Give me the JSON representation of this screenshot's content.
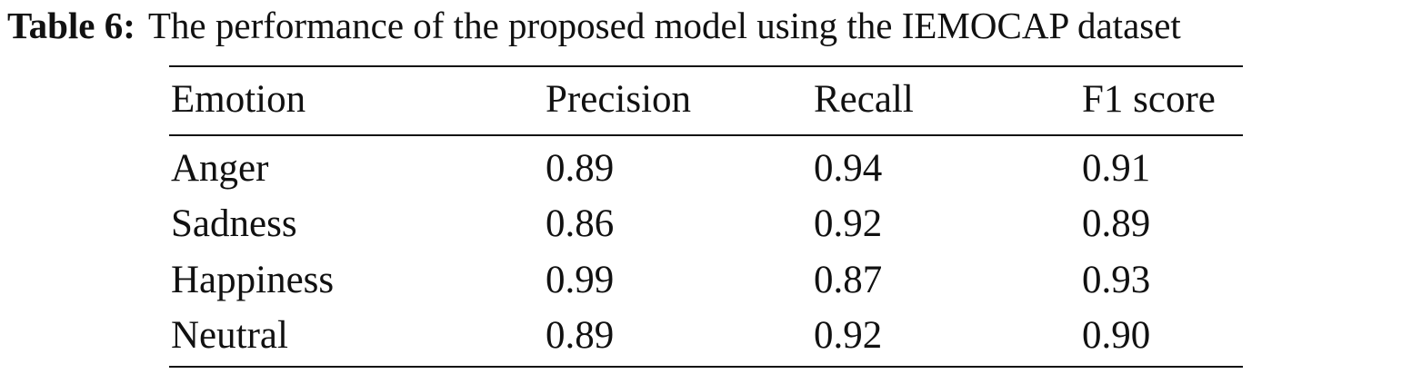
{
  "caption": {
    "label": "Table 6:",
    "text": "The performance of the proposed model using the IEMOCAP dataset"
  },
  "table": {
    "headers": [
      "Emotion",
      "Precision",
      "Recall",
      "F1 score"
    ],
    "rows": [
      [
        "Anger",
        "0.89",
        "0.94",
        "0.91"
      ],
      [
        "Sadness",
        "0.86",
        "0.92",
        "0.89"
      ],
      [
        "Happiness",
        "0.99",
        "0.87",
        "0.93"
      ],
      [
        "Neutral",
        "0.89",
        "0.92",
        "0.90"
      ]
    ]
  }
}
